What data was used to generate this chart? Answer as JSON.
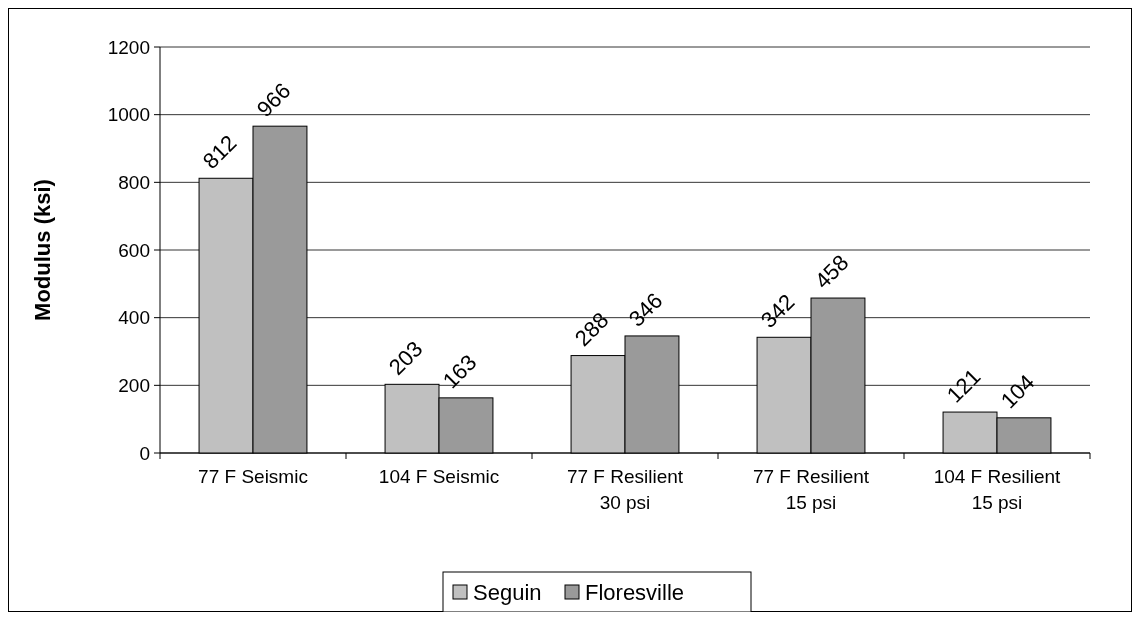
{
  "chart_data": {
    "type": "bar",
    "ylabel": "Modulus (ksi)",
    "categories": [
      "77 F Seismic",
      "104 F Seismic",
      "77 F Resilient\n30 psi",
      "77 F Resilient\n15 psi",
      "104 F Resilient\n15 psi"
    ],
    "series": [
      {
        "name": "Seguin",
        "color": "#c0c0c0",
        "values": [
          812,
          203,
          288,
          342,
          121
        ]
      },
      {
        "name": "Floresville",
        "color": "#9a9a9a",
        "values": [
          966,
          163,
          346,
          458,
          104
        ]
      }
    ],
    "ylim": [
      0,
      1200
    ],
    "yticks": [
      0,
      200,
      400,
      600,
      800,
      1000,
      1200
    ],
    "grid": "y",
    "legend": "bottom",
    "data_labels": true
  }
}
